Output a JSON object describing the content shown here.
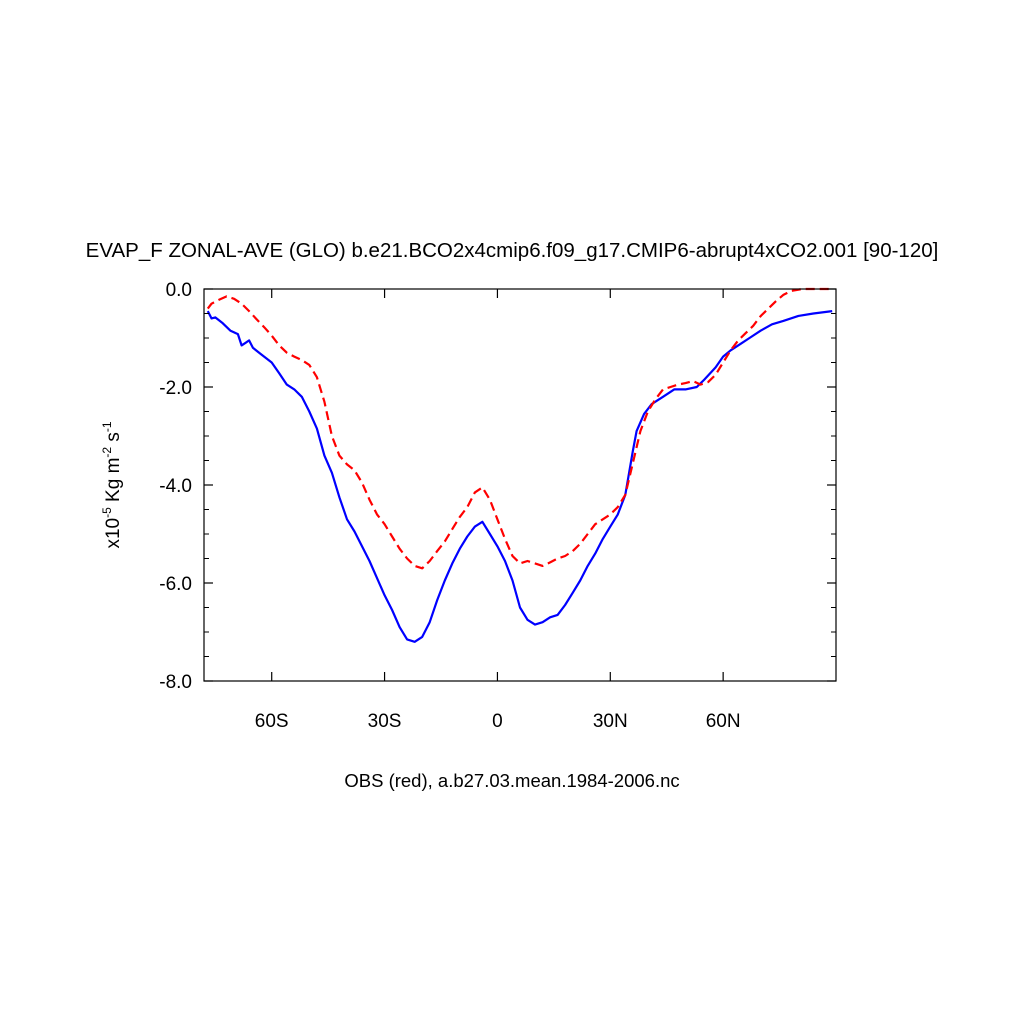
{
  "chart_data": {
    "type": "line",
    "title": "EVAP_F ZONAL-AVE (GLO) b.e21.BCO2x4cmip6.f09_g17.CMIP6-abrupt4xCO2.001 [90-120]",
    "xlabel": "OBS (red), a.b27.03.mean.1984-2006.nc",
    "ylabel_prefix": "x10",
    "ylabel_exp1": "-5",
    "ylabel_mid": " Kg m",
    "ylabel_exp2": "-2",
    "ylabel_s": " s",
    "ylabel_exp3": "-1",
    "xlim": [
      -78,
      90
    ],
    "ylim": [
      -8.0,
      0.0
    ],
    "x_ticks": [
      {
        "value": -60,
        "label": "60S"
      },
      {
        "value": -30,
        "label": "30S"
      },
      {
        "value": 0,
        "label": "0"
      },
      {
        "value": 30,
        "label": "30N"
      },
      {
        "value": 60,
        "label": "60N"
      }
    ],
    "y_ticks": [
      {
        "value": 0.0,
        "label": "0.0"
      },
      {
        "value": -2.0,
        "label": "-2.0"
      },
      {
        "value": -4.0,
        "label": "-4.0"
      },
      {
        "value": -6.0,
        "label": "-6.0"
      },
      {
        "value": -8.0,
        "label": "-8.0"
      }
    ],
    "grid": false,
    "legend": "none",
    "series": [
      {
        "color": "#0000ff",
        "dash": "solid",
        "points": [
          [
            -77,
            -0.45
          ],
          [
            -76,
            -0.6
          ],
          [
            -75,
            -0.58
          ],
          [
            -73,
            -0.7
          ],
          [
            -71,
            -0.85
          ],
          [
            -69,
            -0.92
          ],
          [
            -68,
            -1.15
          ],
          [
            -67,
            -1.1
          ],
          [
            -66,
            -1.05
          ],
          [
            -65,
            -1.2
          ],
          [
            -63,
            -1.32
          ],
          [
            -60,
            -1.5
          ],
          [
            -58,
            -1.72
          ],
          [
            -56,
            -1.95
          ],
          [
            -54,
            -2.05
          ],
          [
            -52,
            -2.2
          ],
          [
            -50,
            -2.5
          ],
          [
            -48,
            -2.85
          ],
          [
            -46,
            -3.4
          ],
          [
            -44,
            -3.75
          ],
          [
            -42,
            -4.25
          ],
          [
            -40,
            -4.7
          ],
          [
            -38,
            -4.95
          ],
          [
            -36,
            -5.25
          ],
          [
            -34,
            -5.55
          ],
          [
            -32,
            -5.9
          ],
          [
            -30,
            -6.25
          ],
          [
            -28,
            -6.55
          ],
          [
            -26,
            -6.9
          ],
          [
            -24,
            -7.15
          ],
          [
            -22,
            -7.2
          ],
          [
            -20,
            -7.1
          ],
          [
            -18,
            -6.8
          ],
          [
            -16,
            -6.35
          ],
          [
            -14,
            -5.95
          ],
          [
            -12,
            -5.6
          ],
          [
            -10,
            -5.3
          ],
          [
            -8,
            -5.05
          ],
          [
            -6,
            -4.85
          ],
          [
            -4,
            -4.75
          ],
          [
            -2,
            -5.0
          ],
          [
            0,
            -5.25
          ],
          [
            2,
            -5.55
          ],
          [
            4,
            -5.95
          ],
          [
            6,
            -6.5
          ],
          [
            8,
            -6.75
          ],
          [
            10,
            -6.85
          ],
          [
            12,
            -6.8
          ],
          [
            14,
            -6.7
          ],
          [
            16,
            -6.65
          ],
          [
            18,
            -6.45
          ],
          [
            20,
            -6.2
          ],
          [
            22,
            -5.95
          ],
          [
            24,
            -5.65
          ],
          [
            26,
            -5.4
          ],
          [
            28,
            -5.1
          ],
          [
            30,
            -4.85
          ],
          [
            32,
            -4.6
          ],
          [
            34,
            -4.2
          ],
          [
            36,
            -3.3
          ],
          [
            37,
            -2.9
          ],
          [
            39,
            -2.55
          ],
          [
            41,
            -2.35
          ],
          [
            44,
            -2.2
          ],
          [
            47,
            -2.05
          ],
          [
            50,
            -2.05
          ],
          [
            53,
            -2.0
          ],
          [
            55,
            -1.85
          ],
          [
            58,
            -1.6
          ],
          [
            60,
            -1.38
          ],
          [
            62,
            -1.25
          ],
          [
            65,
            -1.1
          ],
          [
            67,
            -1.0
          ],
          [
            70,
            -0.85
          ],
          [
            73,
            -0.72
          ],
          [
            76,
            -0.65
          ],
          [
            80,
            -0.55
          ],
          [
            84,
            -0.5
          ],
          [
            89,
            -0.45
          ]
        ]
      },
      {
        "color": "#ff0000",
        "dash": "dashed",
        "points": [
          [
            -77,
            -0.4
          ],
          [
            -76,
            -0.3
          ],
          [
            -74,
            -0.22
          ],
          [
            -72,
            -0.15
          ],
          [
            -70,
            -0.2
          ],
          [
            -68,
            -0.3
          ],
          [
            -66,
            -0.45
          ],
          [
            -64,
            -0.62
          ],
          [
            -62,
            -0.78
          ],
          [
            -60,
            -0.95
          ],
          [
            -58,
            -1.15
          ],
          [
            -56,
            -1.3
          ],
          [
            -54,
            -1.38
          ],
          [
            -52,
            -1.45
          ],
          [
            -50,
            -1.55
          ],
          [
            -48,
            -1.8
          ],
          [
            -46,
            -2.3
          ],
          [
            -44,
            -3.0
          ],
          [
            -42,
            -3.4
          ],
          [
            -40,
            -3.58
          ],
          [
            -38,
            -3.7
          ],
          [
            -36,
            -3.95
          ],
          [
            -34,
            -4.3
          ],
          [
            -32,
            -4.6
          ],
          [
            -30,
            -4.8
          ],
          [
            -28,
            -5.05
          ],
          [
            -26,
            -5.3
          ],
          [
            -24,
            -5.5
          ],
          [
            -22,
            -5.65
          ],
          [
            -20,
            -5.7
          ],
          [
            -18,
            -5.55
          ],
          [
            -16,
            -5.35
          ],
          [
            -14,
            -5.15
          ],
          [
            -12,
            -4.9
          ],
          [
            -10,
            -4.65
          ],
          [
            -8,
            -4.45
          ],
          [
            -6,
            -4.15
          ],
          [
            -4,
            -4.05
          ],
          [
            -2,
            -4.3
          ],
          [
            0,
            -4.7
          ],
          [
            2,
            -5.1
          ],
          [
            4,
            -5.45
          ],
          [
            6,
            -5.6
          ],
          [
            8,
            -5.55
          ],
          [
            10,
            -5.6
          ],
          [
            12,
            -5.65
          ],
          [
            14,
            -5.58
          ],
          [
            16,
            -5.5
          ],
          [
            18,
            -5.45
          ],
          [
            20,
            -5.35
          ],
          [
            22,
            -5.2
          ],
          [
            24,
            -5.0
          ],
          [
            26,
            -4.8
          ],
          [
            28,
            -4.7
          ],
          [
            30,
            -4.6
          ],
          [
            32,
            -4.45
          ],
          [
            34,
            -4.2
          ],
          [
            36,
            -3.55
          ],
          [
            38,
            -2.9
          ],
          [
            40,
            -2.5
          ],
          [
            42,
            -2.25
          ],
          [
            44,
            -2.05
          ],
          [
            46,
            -2.0
          ],
          [
            48,
            -1.95
          ],
          [
            50,
            -1.92
          ],
          [
            52,
            -1.88
          ],
          [
            54,
            -1.95
          ],
          [
            56,
            -1.9
          ],
          [
            58,
            -1.75
          ],
          [
            60,
            -1.5
          ],
          [
            62,
            -1.25
          ],
          [
            64,
            -1.05
          ],
          [
            66,
            -0.9
          ],
          [
            68,
            -0.75
          ],
          [
            70,
            -0.55
          ],
          [
            72,
            -0.4
          ],
          [
            74,
            -0.25
          ],
          [
            76,
            -0.12
          ],
          [
            78,
            -0.04
          ],
          [
            81,
            0.0
          ],
          [
            84,
            0.0
          ],
          [
            89,
            0.0
          ]
        ]
      }
    ]
  }
}
